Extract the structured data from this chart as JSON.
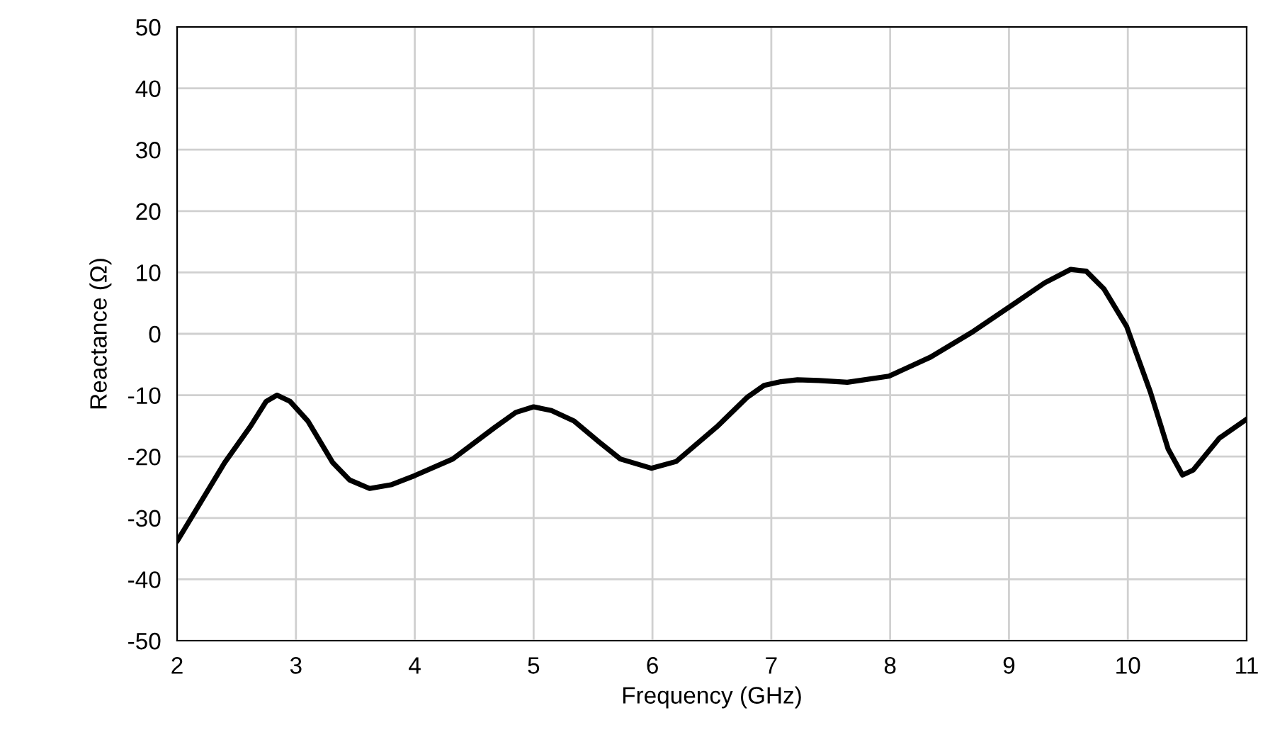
{
  "chart_data": {
    "type": "line",
    "xlabel": "Frequency (GHz)",
    "ylabel": "Reactance (Ω)",
    "xlim": [
      2,
      11
    ],
    "ylim": [
      -50,
      50
    ],
    "xticks": [
      2,
      3,
      4,
      5,
      6,
      7,
      8,
      9,
      10,
      11
    ],
    "yticks": [
      -50,
      -40,
      -30,
      -20,
      -10,
      0,
      10,
      20,
      30,
      40,
      50
    ],
    "grid": true,
    "marker": "none",
    "line_style": "solid",
    "series": [
      {
        "color": "#000000",
        "x": [
          2.0,
          2.4,
          2.62,
          2.75,
          2.84,
          2.95,
          3.1,
          3.31,
          3.45,
          3.62,
          3.8,
          4.0,
          4.32,
          4.67,
          4.85,
          5.0,
          5.15,
          5.34,
          5.55,
          5.73,
          5.99,
          6.2,
          6.55,
          6.8,
          6.94,
          7.08,
          7.22,
          7.4,
          7.64,
          7.99,
          8.34,
          8.7,
          9.05,
          9.3,
          9.52,
          9.65,
          9.8,
          9.99,
          10.19,
          10.34,
          10.46,
          10.55,
          10.77,
          11.0
        ],
        "values": [
          -33.8,
          -21,
          -15,
          -11,
          -10,
          -11,
          -14.2,
          -21,
          -23.8,
          -25.2,
          -24.6,
          -23.1,
          -20.4,
          -15.3,
          -12.8,
          -11.9,
          -12.5,
          -14.2,
          -17.6,
          -20.4,
          -21.9,
          -20.8,
          -15,
          -10.3,
          -8.4,
          -7.8,
          -7.5,
          -7.6,
          -7.9,
          -6.9,
          -3.8,
          0.4,
          5,
          8.3,
          10.5,
          10.2,
          7.3,
          1.2,
          -9.5,
          -18.8,
          -23,
          -22.2,
          -17,
          -13.9
        ]
      }
    ]
  }
}
